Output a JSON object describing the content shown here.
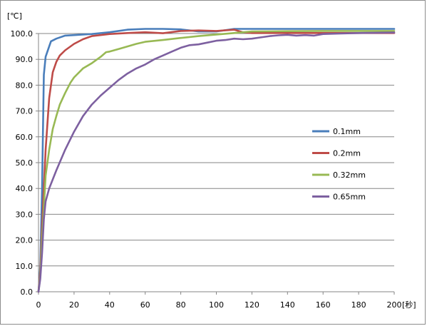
{
  "chart_data": {
    "type": "line",
    "xlabel": "[秒]",
    "ylabel": "[℃]",
    "xlim": [
      0,
      200
    ],
    "ylim": [
      0,
      100
    ],
    "x_ticks": [
      "0",
      "20",
      "40",
      "60",
      "80",
      "100",
      "120",
      "140",
      "160",
      "180",
      "200"
    ],
    "y_ticks": [
      "0.0",
      "10.0",
      "20.0",
      "30.0",
      "40.0",
      "50.0",
      "60.0",
      "70.0",
      "80.0",
      "90.0",
      "100.0"
    ],
    "grid": "horizontal",
    "legend_position": "right-center",
    "series": [
      {
        "name": "0.1mm",
        "color": "#4a7ebb",
        "points": [
          [
            0,
            0
          ],
          [
            1,
            10
          ],
          [
            2,
            40
          ],
          [
            3,
            84
          ],
          [
            4,
            91
          ],
          [
            5,
            93
          ],
          [
            6,
            95
          ],
          [
            7,
            97
          ],
          [
            10,
            98
          ],
          [
            15,
            99.2
          ],
          [
            20,
            99.4
          ],
          [
            30,
            99.8
          ],
          [
            40,
            100.5
          ],
          [
            50,
            101.5
          ],
          [
            60,
            101.8
          ],
          [
            70,
            101.8
          ],
          [
            80,
            101.6
          ],
          [
            90,
            100.8
          ],
          [
            100,
            100.8
          ],
          [
            110,
            101.8
          ],
          [
            120,
            101.8
          ],
          [
            140,
            101.8
          ],
          [
            160,
            101.8
          ],
          [
            180,
            101.8
          ],
          [
            200,
            101.8
          ]
        ]
      },
      {
        "name": "0.2mm",
        "color": "#be4b48",
        "points": [
          [
            0,
            0
          ],
          [
            1,
            8
          ],
          [
            2,
            25
          ],
          [
            4,
            55
          ],
          [
            6,
            75
          ],
          [
            8,
            85
          ],
          [
            10,
            89
          ],
          [
            12,
            91.5
          ],
          [
            15,
            93.5
          ],
          [
            20,
            96
          ],
          [
            25,
            97.8
          ],
          [
            30,
            99
          ],
          [
            40,
            99.8
          ],
          [
            50,
            100.2
          ],
          [
            60,
            100.5
          ],
          [
            70,
            100.1
          ],
          [
            80,
            101
          ],
          [
            90,
            101.2
          ],
          [
            100,
            101
          ],
          [
            110,
            101.5
          ],
          [
            115,
            100.5
          ],
          [
            120,
            100.2
          ],
          [
            140,
            100.2
          ],
          [
            160,
            100.2
          ],
          [
            180,
            100.2
          ],
          [
            200,
            100.2
          ]
        ]
      },
      {
        "name": "0.32mm",
        "color": "#98b954",
        "points": [
          [
            0,
            0
          ],
          [
            1,
            6
          ],
          [
            2,
            20
          ],
          [
            4,
            45
          ],
          [
            6,
            55
          ],
          [
            8,
            63
          ],
          [
            10,
            68
          ],
          [
            12,
            72.5
          ],
          [
            15,
            77
          ],
          [
            18,
            81
          ],
          [
            20,
            83
          ],
          [
            25,
            86.5
          ],
          [
            30,
            88.5
          ],
          [
            35,
            91
          ],
          [
            38,
            92.8
          ],
          [
            40,
            93
          ],
          [
            45,
            94
          ],
          [
            50,
            95
          ],
          [
            55,
            96
          ],
          [
            60,
            96.8
          ],
          [
            70,
            97.5
          ],
          [
            80,
            98.3
          ],
          [
            90,
            99
          ],
          [
            100,
            99.6
          ],
          [
            110,
            100.2
          ],
          [
            120,
            100.8
          ],
          [
            140,
            100.9
          ],
          [
            160,
            101
          ],
          [
            180,
            101
          ],
          [
            200,
            101
          ]
        ]
      },
      {
        "name": "0.65mm",
        "color": "#7d60a0",
        "points": [
          [
            0,
            0
          ],
          [
            1,
            5
          ],
          [
            2,
            15
          ],
          [
            3,
            28
          ],
          [
            4,
            35
          ],
          [
            6,
            40
          ],
          [
            8,
            43.5
          ],
          [
            10,
            47
          ],
          [
            15,
            55
          ],
          [
            20,
            62
          ],
          [
            25,
            68
          ],
          [
            30,
            72.5
          ],
          [
            35,
            76
          ],
          [
            40,
            79
          ],
          [
            45,
            82
          ],
          [
            50,
            84.5
          ],
          [
            55,
            86.5
          ],
          [
            60,
            88
          ],
          [
            65,
            90
          ],
          [
            70,
            91.5
          ],
          [
            75,
            93
          ],
          [
            80,
            94.5
          ],
          [
            85,
            95.5
          ],
          [
            90,
            95.8
          ],
          [
            95,
            96.5
          ],
          [
            100,
            97.2
          ],
          [
            105,
            97.5
          ],
          [
            110,
            98
          ],
          [
            115,
            97.8
          ],
          [
            120,
            98
          ],
          [
            125,
            98.5
          ],
          [
            130,
            99
          ],
          [
            135,
            99.3
          ],
          [
            140,
            99.5
          ],
          [
            145,
            99.2
          ],
          [
            150,
            99.4
          ],
          [
            155,
            99.2
          ],
          [
            160,
            99.8
          ],
          [
            170,
            100
          ],
          [
            180,
            100.2
          ],
          [
            190,
            100.3
          ],
          [
            200,
            100.4
          ]
        ]
      }
    ]
  }
}
